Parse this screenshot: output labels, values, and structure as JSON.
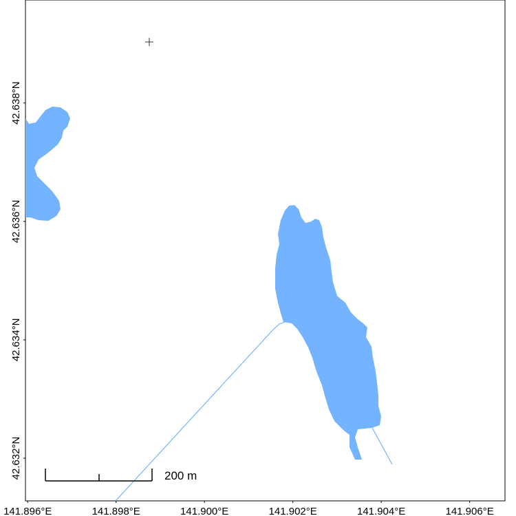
{
  "map": {
    "xlim": [
      141.89595,
      141.9068
    ],
    "ylim": [
      42.63128,
      42.63974
    ],
    "xticks": [
      {
        "value": 141.896,
        "label": "141.896°E"
      },
      {
        "value": 141.898,
        "label": "141.898°E"
      },
      {
        "value": 141.9,
        "label": "141.900°E"
      },
      {
        "value": 141.902,
        "label": "141.902°E"
      },
      {
        "value": 141.904,
        "label": "141.904°E"
      },
      {
        "value": 141.906,
        "label": "141.906°E"
      }
    ],
    "yticks": [
      {
        "value": 42.632,
        "label": "42.632°N"
      },
      {
        "value": 42.634,
        "label": "42.634°N"
      },
      {
        "value": 42.636,
        "label": "42.636°N"
      },
      {
        "value": 42.638,
        "label": "42.638°N"
      }
    ],
    "scale_bar": {
      "label": "200 m"
    }
  }
}
